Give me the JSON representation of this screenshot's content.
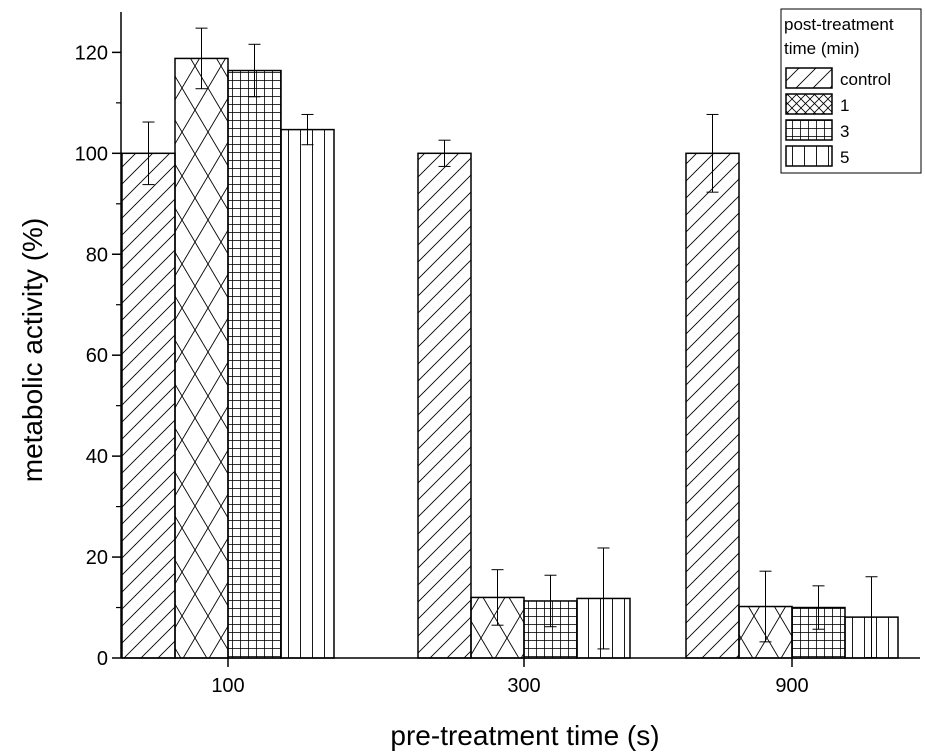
{
  "chart_data": {
    "type": "bar",
    "xlabel": "pre-treatment time (s)",
    "ylabel": "metabolic activity (%)",
    "ylim": [
      0,
      128
    ],
    "yticks": [
      0,
      20,
      40,
      60,
      80,
      100,
      120
    ],
    "categories": [
      "100",
      "300",
      "900"
    ],
    "legend": {
      "title_line1": "post-treatment",
      "title_line2": "time (min)",
      "placement": "top-right"
    },
    "series": [
      {
        "name": "control",
        "pattern": "diagonal",
        "values": [
          100,
          100,
          100
        ],
        "errors": [
          6.2,
          2.6,
          7.7
        ]
      },
      {
        "name": "1",
        "pattern": "crosshatch",
        "values": [
          118.8,
          12.0,
          10.2
        ],
        "errors": [
          6.0,
          5.5,
          7.0
        ]
      },
      {
        "name": "3",
        "pattern": "grid",
        "values": [
          116.4,
          11.3,
          10.0
        ],
        "errors": [
          5.2,
          5.1,
          4.3
        ]
      },
      {
        "name": "5",
        "pattern": "vertical",
        "values": [
          104.7,
          11.8,
          8.1
        ],
        "errors": [
          3.0,
          10.0,
          8.0
        ]
      }
    ],
    "grid": false
  }
}
